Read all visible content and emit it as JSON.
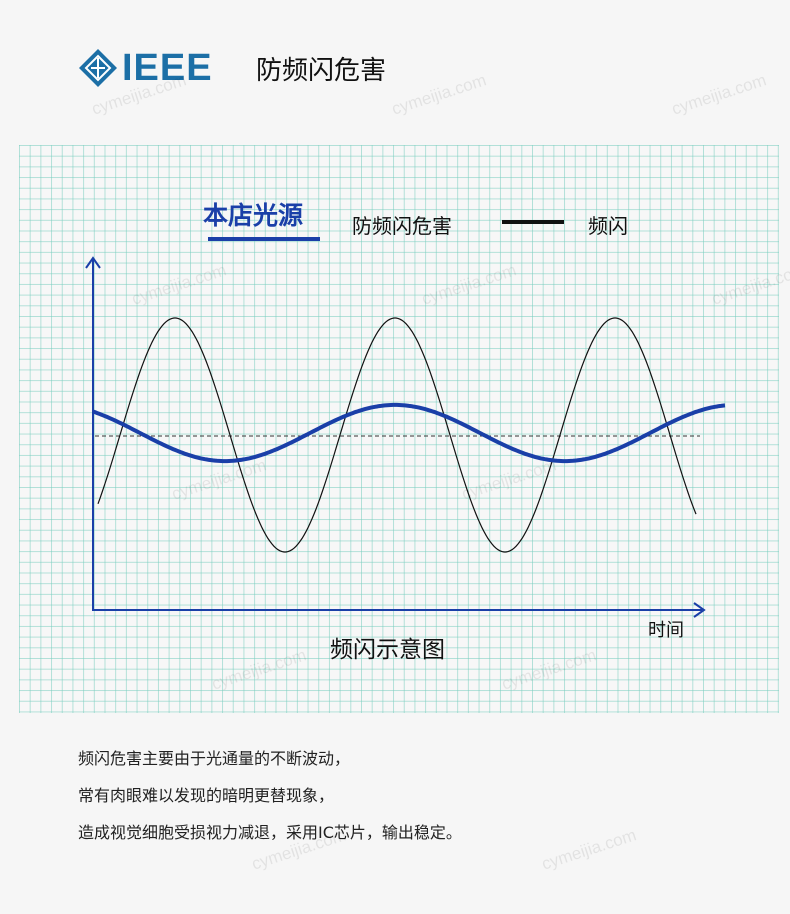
{
  "header": {
    "logo_text": "IEEE",
    "title": "防频闪危害"
  },
  "legend": {
    "brand": "本店光源",
    "hazard": "防频闪危害",
    "flicker": "频闪"
  },
  "x_axis_label": "时间",
  "caption": "频闪示意图",
  "description": [
    "频闪危害主要由于光通量的不断波动，",
    "常有肉眼难以发现的暗明更替现象，",
    "造成视觉细胞受损视力减退，采用IC芯片，输出稳定。"
  ],
  "watermark": "cymeijia.com",
  "colors": {
    "brand_blue": "#1a3fa8",
    "flicker_line": "#111111",
    "grid": "#78cdbe",
    "logo": "#1c6fa6"
  },
  "chart_data": {
    "type": "line",
    "xlabel": "时间",
    "series": [
      {
        "name": "频闪",
        "kind": "sine",
        "relative_amplitude": 1.0,
        "cycles_shown": 2.7,
        "color": "#111111"
      },
      {
        "name": "本店光源",
        "kind": "sine",
        "relative_amplitude": 0.24,
        "cycles_shown": 1.85,
        "color": "#1a3fa8"
      }
    ],
    "reference_line": "dashed-mean"
  }
}
